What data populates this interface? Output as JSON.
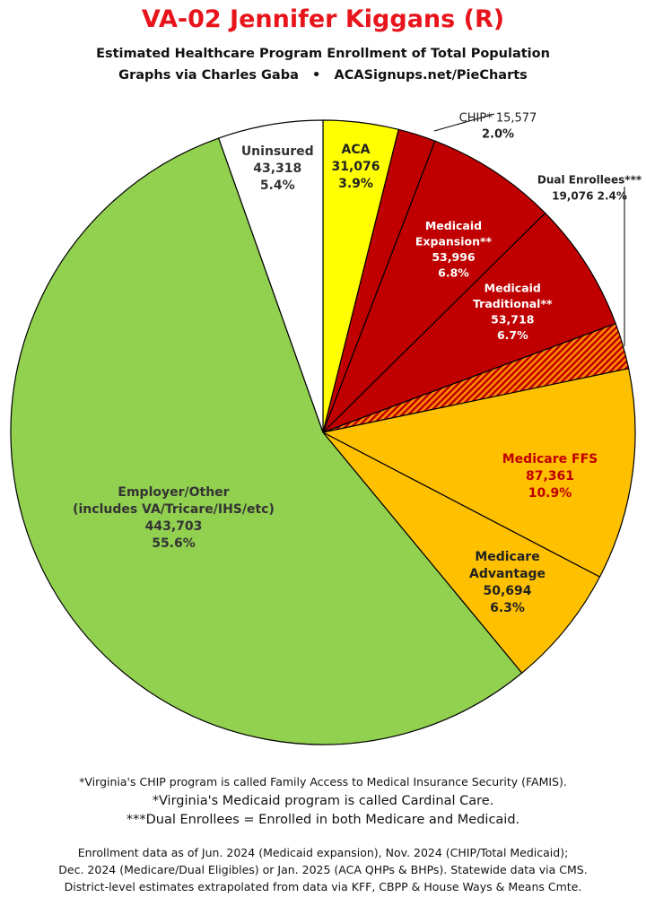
{
  "header": {
    "title": "VA-02 Jennifer Kiggans (R)",
    "subtitle": "Estimated Healthcare Program Enrollment of Total Population",
    "credit_left": "Graphs via Charles Gaba",
    "credit_sep": "•",
    "credit_right": "ACASignups.net/PieCharts"
  },
  "chart_data": {
    "type": "pie",
    "slices": [
      {
        "name": "ACA",
        "value": 31076,
        "percent": "3.9%",
        "color": "#ffff00",
        "label_lines": [
          "ACA",
          "31,076",
          "3.9%"
        ],
        "label_color": "#222222"
      },
      {
        "name": "CHIP*",
        "value": 15577,
        "percent": "2.0%",
        "color": "#c00000",
        "label_lines": [
          "CHIP* 15,577",
          "2.0%"
        ],
        "label_color": "#222222"
      },
      {
        "name": "Medicaid Expansion**",
        "value": 53996,
        "percent": "6.8%",
        "color": "#c00000",
        "label_lines": [
          "Medicaid",
          "Expansion**",
          "53,996",
          "6.8%"
        ],
        "label_color": "#ffffff"
      },
      {
        "name": "Medicaid Traditional**",
        "value": 53718,
        "percent": "6.7%",
        "color": "#c00000",
        "label_lines": [
          "Medicaid",
          "Traditional**",
          "53,718",
          "6.7%"
        ],
        "label_color": "#ffffff"
      },
      {
        "name": "Dual Enrollees***",
        "value": 19076,
        "percent": "2.4%",
        "color": "#e05a00",
        "pattern": "stripes",
        "label_lines": [
          "Dual Enrollees***",
          "19,076 2.4%"
        ],
        "label_color": "#222222"
      },
      {
        "name": "Medicare FFS",
        "value": 87361,
        "percent": "10.9%",
        "color": "#ffc000",
        "label_lines": [
          "Medicare FFS",
          "87,361",
          "10.9%"
        ],
        "label_color": "#c00000"
      },
      {
        "name": "Medicare Advantage",
        "value": 50694,
        "percent": "6.3%",
        "color": "#ffc000",
        "label_lines": [
          "Medicare",
          "Advantage",
          "50,694",
          "6.3%"
        ],
        "label_color": "#222222"
      },
      {
        "name": "Employer/Other",
        "value": 443703,
        "percent": "55.6%",
        "color": "#92d050",
        "label_lines": [
          "Employer/Other",
          "(includes VA/Tricare/IHS/etc)",
          "443,703",
          "55.6%"
        ],
        "label_color": "#333333"
      },
      {
        "name": "Uninsured",
        "value": 43318,
        "percent": "5.4%",
        "color": "#ffffff",
        "label_lines": [
          "Uninsured",
          "43,318",
          "5.4%"
        ],
        "label_color": "#333333"
      }
    ]
  },
  "footnotes": {
    "chip_note": "*Virginia's CHIP program is called Family Access to Medical Insurance Security (FAMIS).",
    "medicaid_note": "*Virginia's Medicaid program is called Cardinal Care.",
    "dual_note": "***Dual Enrollees = Enrolled in both Medicare and Medicaid."
  },
  "source": {
    "line1": "Enrollment data as of Jun. 2024 (Medicaid expansion), Nov. 2024 (CHIP/Total Medicaid);",
    "line2": "Dec. 2024 (Medicare/Dual Eligibles) or Jan. 2025 (ACA QHPs & BHPs). Statewide data via CMS.",
    "line3": "District-level estimates extrapolated from data via KFF, CBPP & House Ways & Means Cmte."
  }
}
